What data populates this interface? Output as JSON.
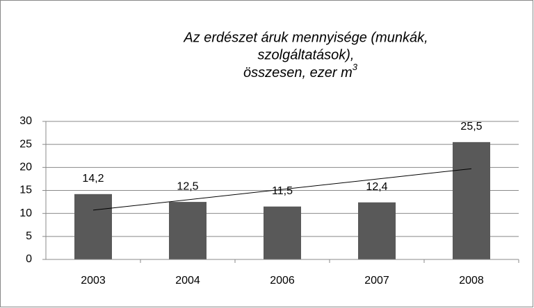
{
  "chart_data": {
    "type": "bar",
    "title": [
      "Az erdészet áruk mennyisége (munkák,",
      "szolgáltatások),",
      "összesen, ezer m"
    ],
    "title_superscript": "3",
    "categories": [
      "2003",
      "2004",
      "2006",
      "2007",
      "2008"
    ],
    "values": [
      14.2,
      12.5,
      11.5,
      12.4,
      25.5
    ],
    "value_labels": [
      "14,2",
      "12,5",
      "11,5",
      "12,4",
      "25,5"
    ],
    "color": "#595959",
    "trendline": "linear",
    "ylim": [
      0,
      30
    ],
    "yticks": [
      0,
      5,
      10,
      15,
      20,
      25,
      30
    ],
    "grid": true
  }
}
